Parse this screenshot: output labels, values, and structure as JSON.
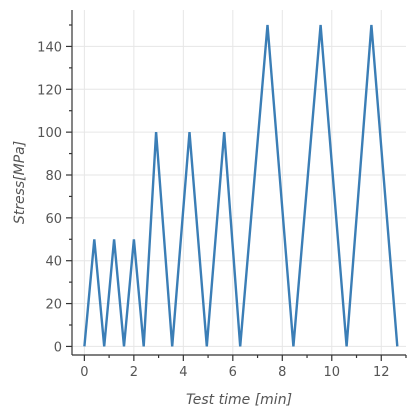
{
  "chart_data": {
    "type": "line",
    "xlabel": "Test time [min]",
    "ylabel": "Stress[MPa]",
    "xlim": [
      -0.5,
      13.0
    ],
    "ylim": [
      -4,
      157
    ],
    "xticks": [
      0,
      2,
      4,
      6,
      8,
      10,
      12
    ],
    "yticks": [
      0,
      20,
      40,
      60,
      80,
      100,
      120,
      140
    ],
    "grid": true,
    "series": [
      {
        "color": "#3b7eb6",
        "x": [
          0.0,
          0.4,
          0.8,
          1.2,
          1.6,
          2.0,
          2.4,
          2.9,
          3.55,
          4.25,
          4.95,
          5.65,
          6.3,
          7.4,
          8.45,
          9.55,
          10.6,
          11.6,
          12.65
        ],
        "y": [
          0,
          50,
          0,
          50,
          0,
          50,
          0,
          100,
          0,
          100,
          0,
          100,
          0,
          150,
          0,
          150,
          0,
          150,
          0
        ]
      }
    ]
  }
}
